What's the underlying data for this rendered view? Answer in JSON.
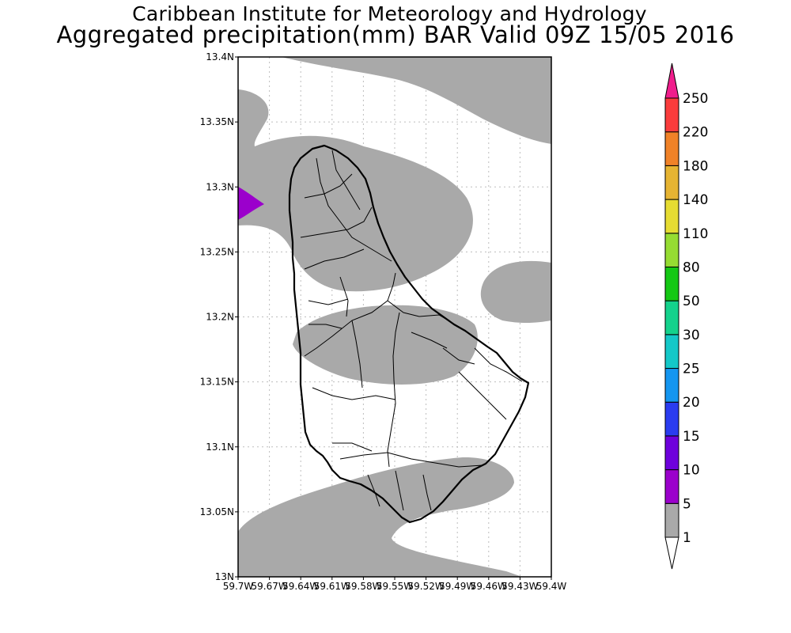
{
  "title": {
    "line1": "Caribbean Institute for Meteorology and Hydrology",
    "line2": "Aggregated precipitation(mm) BAR Valid 09Z 15/05 2016"
  },
  "map": {
    "lat_labels": [
      "13.4N",
      "13.35N",
      "13.3N",
      "13.25N",
      "13.2N",
      "13.15N",
      "13.1N",
      "13.05N",
      "13N"
    ],
    "lon_labels": [
      "59.7W",
      "59.67W",
      "59.64W",
      "59.61W",
      "59.58W",
      "59.55W",
      "59.52W",
      "59.49W",
      "59.46W",
      "59.43W",
      "59.4W"
    ],
    "precip_shade_color": "#a9a9a9",
    "max_patch_color": "#9b00cc"
  },
  "colorbar": {
    "levels": [
      "1",
      "5",
      "10",
      "15",
      "20",
      "25",
      "30",
      "50",
      "80",
      "110",
      "140",
      "180",
      "220",
      "250"
    ],
    "colors": [
      "#a9a9a9",
      "#9b00cc",
      "#6e00dc",
      "#2a3cf0",
      "#1496f0",
      "#14c8c8",
      "#14d28c",
      "#14c814",
      "#96dc32",
      "#e6dc32",
      "#e6b432",
      "#f08228",
      "#fa3c3c",
      "#f01e8c"
    ],
    "below_color": "#ffffff"
  }
}
